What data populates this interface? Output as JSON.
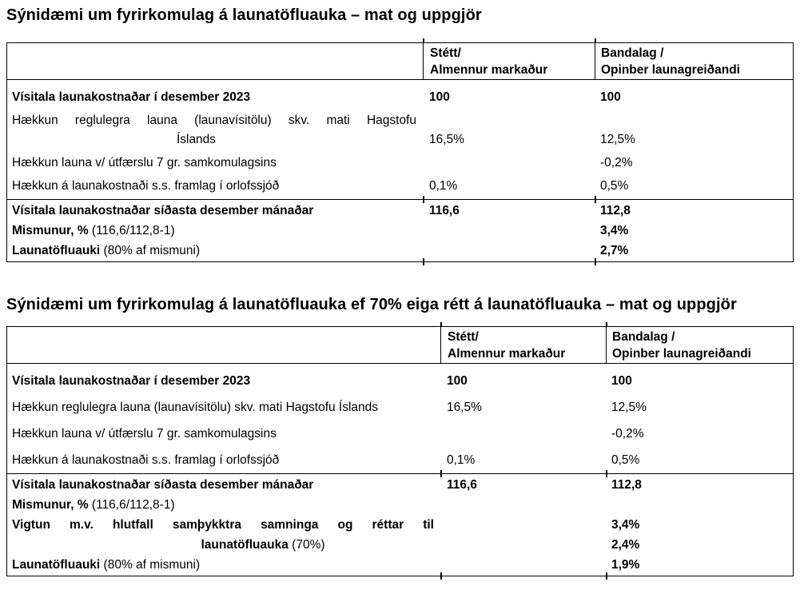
{
  "colors": {
    "text": "#000000",
    "background": "#ffffff",
    "border": "#000000"
  },
  "sections": [
    {
      "title": "Sýnidæmi um fyrirkomulag á launatöfluauka – mat og uppgjör",
      "table": {
        "header": {
          "col2": [
            "Stétt/",
            "Almennur markaður"
          ],
          "col3": [
            "Bandalag /",
            "Opinber launagreiðandi"
          ]
        },
        "body": [
          {
            "label": "Vísitala launakostnaðar í desember 2023",
            "v2": "100",
            "v3": "100"
          },
          {
            "line1": "Hækkun reglulegra launa (launavísitölu) skv. mati Hagstofu",
            "line2": "Íslands",
            "v2": "16,5%",
            "v3": "12,5%"
          },
          {
            "label": "Hækkun launa v/ útfærslu 7 gr. samkomulagsins",
            "v2": "",
            "v3": "-0,2%"
          },
          {
            "label": "Hækkun á launakostnaði s.s. framlag í orlofssjóð",
            "v2": "0,1%",
            "v3": "0,5%"
          }
        ],
        "footer": [
          {
            "label": "Vísitala launakostnaðar síðasta desember mánaðar",
            "v2": "116,6",
            "v3": "112,8"
          },
          {
            "label_bold": "Mismunur, %",
            "label_rest": " (116,6/112,8-1)",
            "v3": "3,4%"
          },
          {
            "label_bold": "Launatöfluauki",
            "label_rest": " (80% af mismuni)",
            "v3": "2,7%"
          }
        ]
      }
    },
    {
      "title": "Sýnidæmi um fyrirkomulag á launatöfluauka ef 70% eiga rétt á launatöfluauka – mat og uppgjör",
      "table": {
        "header": {
          "col2": [
            "Stétt/",
            "Almennur markaður"
          ],
          "col3": [
            "Bandalag /",
            "Opinber launagreiðandi"
          ]
        },
        "body": [
          {
            "label": "Vísitala launakostnaðar í desember 2023",
            "v2": "100",
            "v3": "100"
          },
          {
            "label": "Hækkun reglulegra launa (launavísitölu) skv. mati Hagstofu Íslands",
            "v2": "16,5%",
            "v3": "12,5%"
          },
          {
            "label": "Hækkun launa v/ útfærslu 7 gr. samkomulagsins",
            "v2": "",
            "v3": "-0,2%"
          },
          {
            "label": "Hækkun á launakostnaði s.s. framlag í orlofssjóð",
            "v2": "0,1%",
            "v3": "0,5%"
          }
        ],
        "footer": [
          {
            "label": "Vísitala launakostnaðar síðasta desember mánaðar",
            "v2": "116,6",
            "v3": "112,8"
          },
          {
            "label_bold": "Mismunur, %",
            "label_rest": " (116,6/112,8-1)"
          },
          {
            "line1": "Vigtun m.v. hlutfall samþykktra samninga og réttar til",
            "line2_bold": "launatöfluauka",
            "line2_rest": " (70%)",
            "v3_line1": "3,4%",
            "v3_line2": "2,4%"
          },
          {
            "label_bold": "Launatöfluauki",
            "label_rest": " (80% af mismuni)",
            "v3": "1,9%"
          }
        ]
      }
    }
  ]
}
